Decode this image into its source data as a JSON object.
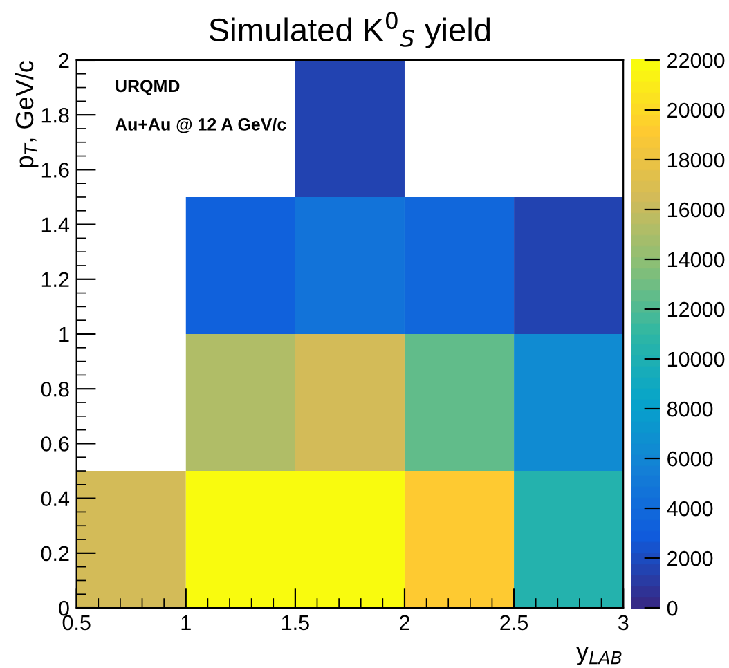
{
  "chart_data": {
    "type": "heatmap",
    "title": "Simulated K$^{0}$$_{S}$ yield",
    "xlabel": "y$_{LAB}$",
    "ylabel": "p$_{T}$, GeV/c",
    "annotations": [
      "URQMD",
      "Au+Au @ 12 A GeV/c"
    ],
    "xlim": [
      0.5,
      3
    ],
    "ylim": [
      0,
      2
    ],
    "xticks": [
      0.5,
      1,
      1.5,
      2,
      2.5,
      3
    ],
    "yticks": [
      0,
      0.2,
      0.4,
      0.6,
      0.8,
      1,
      1.2,
      1.4,
      1.6,
      1.8,
      2
    ],
    "cells": [
      [
        null,
        null,
        1500,
        null,
        null
      ],
      [
        null,
        3500,
        4500,
        3800,
        1500
      ],
      [
        null,
        15000,
        16500,
        12500,
        6500
      ],
      [
        16500,
        22000,
        22000,
        19000,
        10500
      ]
    ],
    "clim": [
      0,
      22000
    ],
    "cticks": [
      0,
      2000,
      4000,
      6000,
      8000,
      10000,
      12000,
      14000,
      16000,
      18000,
      20000,
      22000
    ]
  }
}
